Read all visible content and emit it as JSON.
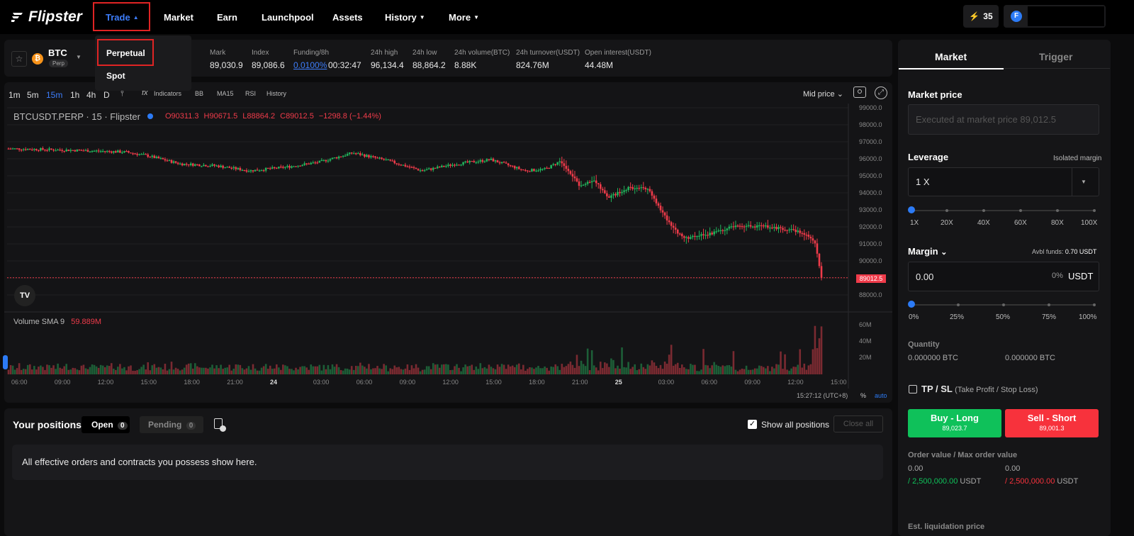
{
  "nav": {
    "brand": "Flipster",
    "items": [
      "Trade",
      "Market",
      "Earn",
      "Launchpool",
      "Assets",
      "History",
      "More"
    ],
    "points": "35"
  },
  "trade_menu": [
    "Perpetual",
    "Spot"
  ],
  "symbol": {
    "name": "BTC",
    "badge": "Perp"
  },
  "ticker": [
    {
      "label": "Mark",
      "value": "89,030.9"
    },
    {
      "label": "Index",
      "value": "89,086.6"
    },
    {
      "label": "Funding/8h",
      "value": "0.0100%",
      "extra": "00:32:47"
    },
    {
      "label": "24h high",
      "value": "96,134.4"
    },
    {
      "label": "24h low",
      "value": "88,864.2"
    },
    {
      "label": "24h volume(BTC)",
      "value": "8.88K"
    },
    {
      "label": "24h turnover(USDT)",
      "value": "824.76M"
    },
    {
      "label": "Open interest(USDT)",
      "value": "44.48M"
    }
  ],
  "timeframes": [
    "1m",
    "5m",
    "15m",
    "1h",
    "4h",
    "D"
  ],
  "indicators": [
    "Indicators",
    "BB",
    "MA15",
    "RSI",
    "History"
  ],
  "mid_price": "Mid price",
  "chart": {
    "title": "BTCUSDT.PERP · 15 · Flipster",
    "ohlc": {
      "o": "O90311.3",
      "h": "H90671.5",
      "l": "L88864.2",
      "c": "C89012.5",
      "chg": "−1298.8 (−1.44%)"
    },
    "price_label": "89012.5",
    "volume_label": "Volume SMA 9",
    "volume_value": "59.889M",
    "time": "15:27:12 (UTC+8)",
    "pct": "%",
    "auto": "auto",
    "colors": {
      "up": "#21b35b",
      "down": "#ef3b4a"
    }
  },
  "chart_data": {
    "type": "candlestick",
    "y_ticks": [
      "99000.0",
      "98000.0",
      "97000.0",
      "96000.0",
      "95000.0",
      "94000.0",
      "93000.0",
      "92000.0",
      "91000.0",
      "90000.0",
      "89000.0",
      "88000.0"
    ],
    "vol_ticks": [
      "60M",
      "40M",
      "20M"
    ],
    "x_ticks": [
      "06:00",
      "09:00",
      "12:00",
      "15:00",
      "18:00",
      "21:00",
      "24",
      "03:00",
      "06:00",
      "09:00",
      "12:00",
      "15:00",
      "18:00",
      "21:00",
      "25",
      "03:00",
      "06:00",
      "09:00",
      "12:00",
      "15:00"
    ],
    "close_path": [
      [
        0,
        96600
      ],
      [
        0.1,
        96500
      ],
      [
        0.17,
        96400
      ],
      [
        0.2,
        96200
      ],
      [
        0.25,
        95700
      ],
      [
        0.3,
        95600
      ],
      [
        0.35,
        95300
      ],
      [
        0.4,
        95500
      ],
      [
        0.45,
        95800
      ],
      [
        0.5,
        96350
      ],
      [
        0.55,
        95900
      ],
      [
        0.6,
        95300
      ],
      [
        0.65,
        95700
      ],
      [
        0.7,
        95950
      ],
      [
        0.75,
        95300
      ],
      [
        0.78,
        95400
      ],
      [
        0.8,
        95850
      ],
      [
        0.83,
        94400
      ],
      [
        0.85,
        94800
      ],
      [
        0.87,
        93700
      ],
      [
        0.9,
        94300
      ],
      [
        0.93,
        94250
      ],
      [
        0.94,
        93400
      ],
      [
        0.96,
        92200
      ],
      [
        0.98,
        91300
      ],
      [
        1.02,
        91600
      ],
      [
        1.05,
        92000
      ],
      [
        1.1,
        92050
      ],
      [
        1.15,
        91700
      ],
      [
        1.17,
        91200
      ],
      [
        1.18,
        89012.5
      ]
    ]
  },
  "positions": {
    "title": "Your positions",
    "open": "Open",
    "open_count": "0",
    "pending": "Pending",
    "pending_count": "0",
    "show_all": "Show all positions",
    "close_all": "Close all",
    "empty": "All effective orders and contracts you possess show here."
  },
  "order": {
    "tabs": [
      "Market",
      "Trigger"
    ],
    "market_price": "Market price",
    "market_placeholder": "Executed at market price 89,012.5",
    "leverage": "Leverage",
    "isolated": "Isolated margin",
    "leverage_value": "1 X",
    "lev_marks": [
      "1X",
      "20X",
      "40X",
      "60X",
      "80X",
      "100X"
    ],
    "margin": "Margin",
    "avbl_label": "Avbl funds:",
    "avbl_value": "0.70 USDT",
    "margin_value": "0.00",
    "margin_pct": "0%",
    "margin_unit": "USDT",
    "pct_marks": [
      "0%",
      "25%",
      "50%",
      "75%",
      "100%"
    ],
    "quantity": "Quantity",
    "qty_long": "0.000000 BTC",
    "qty_short": "0.000000 BTC",
    "tpsl": "TP / SL",
    "tpsl_desc": "(Take Profit / Stop Loss)",
    "buy": "Buy - Long",
    "buy_price": "89,023.7",
    "sell": "Sell - Short",
    "sell_price": "89,001.3",
    "order_value": "Order value / Max order value",
    "ov_long": "0.00",
    "ov_short": "0.00",
    "max_long": "/ 2,500,000.00",
    "max_short": "/ 2,500,000.00",
    "usdt": "USDT",
    "est_liq": "Est. liquidation price"
  }
}
